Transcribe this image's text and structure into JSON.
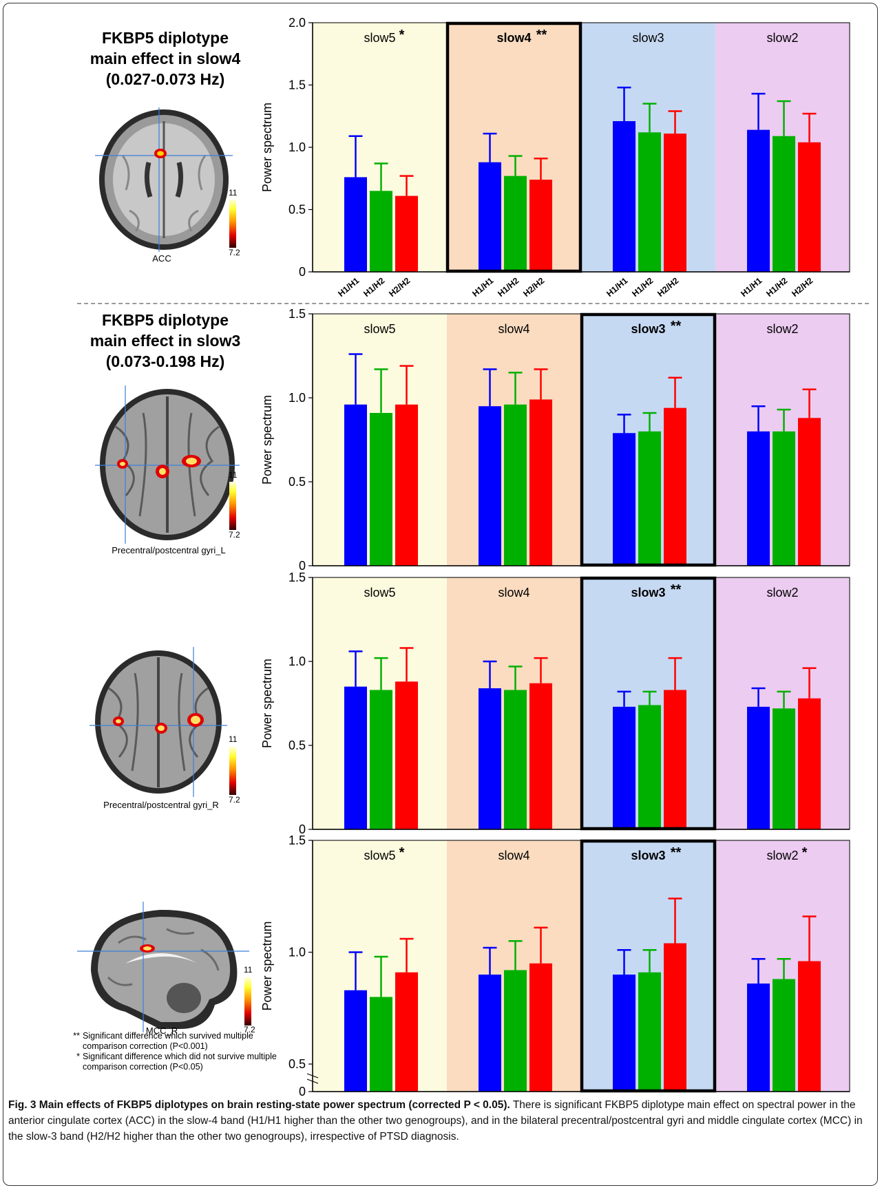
{
  "panels": [
    {
      "heading": [
        "FKBP5 diplotype",
        "main effect in slow4",
        "(0.027-0.073 Hz)"
      ],
      "region_label": "ACC",
      "colorbar": {
        "max": "11",
        "min": "7.2"
      }
    },
    {
      "heading": [
        "FKBP5 diplotype",
        "main effect in slow3",
        "(0.073-0.198 Hz)"
      ],
      "region_label": "Precentral/postcentral gyri_L",
      "colorbar": {
        "max": "11",
        "min": "7.2"
      }
    },
    {
      "heading": [],
      "region_label": "Precentral/postcentral gyri_R",
      "colorbar": {
        "max": "11",
        "min": "7.2"
      }
    },
    {
      "heading": [],
      "region_label": "MCC_R",
      "colorbar": {
        "max": "11",
        "min": "7.2"
      }
    }
  ],
  "legend": [
    {
      "marker": "**",
      "text": "Significant difference which survived multiple comparison correction (P<0.001)"
    },
    {
      "marker": "*",
      "text": "Significant difference which did not survive multiple comparison correction (P<0.05)"
    }
  ],
  "caption": {
    "title": "Fig. 3 Main effects of FKBP5 diplotypes on brain resting-state power spectrum (corrected P < 0.05).",
    "body": "There is significant FKBP5 diplotype main effect on spectral power in the anterior cingulate cortex (ACC) in the slow-4 band (H1/H1 higher than the other two genogroups), and in the bilateral precentral/postcentral gyri and middle cingulate cortex (MCC) in the slow-3 band (H2/H2 higher than the other two genogroups), irrespective of PTSD diagnosis."
  },
  "colors": {
    "H1/H1": "#0000ff",
    "H1/H2": "#00b000",
    "H2/H2": "#ff0000",
    "slow5_bg": "#fdfbdf",
    "slow4_bg": "#fbdcc0",
    "slow3_bg": "#c6d9f3",
    "slow2_bg": "#ecccf1"
  },
  "chart_data": [
    {
      "type": "bar",
      "ylabel": "Power spectrum",
      "ylim": [
        0,
        2.0
      ],
      "yticks": [
        "0",
        "0.5",
        "1.0",
        "1.5",
        "2.0"
      ],
      "genotypes": [
        "H1/H1",
        "H1/H2",
        "H2/H2"
      ],
      "show_genotype_labels": true,
      "highlight": "slow4",
      "bands": [
        {
          "band": "slow5",
          "mark": "*",
          "means": [
            0.76,
            0.65,
            0.61
          ],
          "errors": [
            0.33,
            0.22,
            0.16
          ]
        },
        {
          "band": "slow4",
          "mark": "**",
          "means": [
            0.88,
            0.77,
            0.74
          ],
          "errors": [
            0.23,
            0.16,
            0.17
          ]
        },
        {
          "band": "slow3",
          "mark": "",
          "means": [
            1.21,
            1.12,
            1.11
          ],
          "errors": [
            0.27,
            0.23,
            0.18
          ]
        },
        {
          "band": "slow2",
          "mark": "",
          "means": [
            1.14,
            1.09,
            1.04
          ],
          "errors": [
            0.29,
            0.28,
            0.23
          ]
        }
      ]
    },
    {
      "type": "bar",
      "ylabel": "Power spectrum",
      "ylim": [
        0,
        1.5
      ],
      "yticks": [
        "0",
        "0.5",
        "1.0",
        "1.5"
      ],
      "genotypes": [
        "H1/H1",
        "H1/H2",
        "H2/H2"
      ],
      "show_genotype_labels": false,
      "highlight": "slow3",
      "bands": [
        {
          "band": "slow5",
          "mark": "",
          "means": [
            0.96,
            0.91,
            0.96
          ],
          "errors": [
            0.3,
            0.26,
            0.23
          ]
        },
        {
          "band": "slow4",
          "mark": "",
          "means": [
            0.95,
            0.96,
            0.99
          ],
          "errors": [
            0.22,
            0.19,
            0.18
          ]
        },
        {
          "band": "slow3",
          "mark": "**",
          "means": [
            0.79,
            0.8,
            0.94
          ],
          "errors": [
            0.11,
            0.11,
            0.18
          ]
        },
        {
          "band": "slow2",
          "mark": "",
          "means": [
            0.8,
            0.8,
            0.88
          ],
          "errors": [
            0.15,
            0.13,
            0.17
          ]
        }
      ]
    },
    {
      "type": "bar",
      "ylabel": "Power spectrum",
      "ylim": [
        0,
        1.5
      ],
      "yticks": [
        "0",
        "0.5",
        "1.0",
        "1.5"
      ],
      "genotypes": [
        "H1/H1",
        "H1/H2",
        "H2/H2"
      ],
      "show_genotype_labels": false,
      "highlight": "slow3",
      "bands": [
        {
          "band": "slow5",
          "mark": "",
          "means": [
            0.85,
            0.83,
            0.88
          ],
          "errors": [
            0.21,
            0.19,
            0.2
          ]
        },
        {
          "band": "slow4",
          "mark": "",
          "means": [
            0.84,
            0.83,
            0.87
          ],
          "errors": [
            0.16,
            0.14,
            0.15
          ]
        },
        {
          "band": "slow3",
          "mark": "**",
          "means": [
            0.73,
            0.74,
            0.83
          ],
          "errors": [
            0.09,
            0.08,
            0.19
          ]
        },
        {
          "band": "slow2",
          "mark": "",
          "means": [
            0.73,
            0.72,
            0.78
          ],
          "errors": [
            0.11,
            0.1,
            0.18
          ]
        }
      ]
    },
    {
      "type": "bar",
      "ylabel": "Power spectrum",
      "ylim": [
        0.5,
        1.5
      ],
      "yticks": [
        "0",
        "0.5",
        "1.0",
        "1.5"
      ],
      "axis_break_below": 0.5,
      "genotypes": [
        "H1/H1",
        "H1/H2",
        "H2/H2"
      ],
      "show_genotype_labels": false,
      "highlight": "slow3",
      "bands": [
        {
          "band": "slow5",
          "mark": "*",
          "means": [
            0.83,
            0.8,
            0.91
          ],
          "errors": [
            0.17,
            0.18,
            0.15
          ]
        },
        {
          "band": "slow4",
          "mark": "",
          "means": [
            0.9,
            0.92,
            0.95
          ],
          "errors": [
            0.12,
            0.13,
            0.16
          ]
        },
        {
          "band": "slow3",
          "mark": "**",
          "means": [
            0.9,
            0.91,
            1.04
          ],
          "errors": [
            0.11,
            0.1,
            0.2
          ]
        },
        {
          "band": "slow2",
          "mark": "*",
          "means": [
            0.86,
            0.88,
            0.96
          ],
          "errors": [
            0.11,
            0.09,
            0.2
          ]
        }
      ]
    }
  ]
}
